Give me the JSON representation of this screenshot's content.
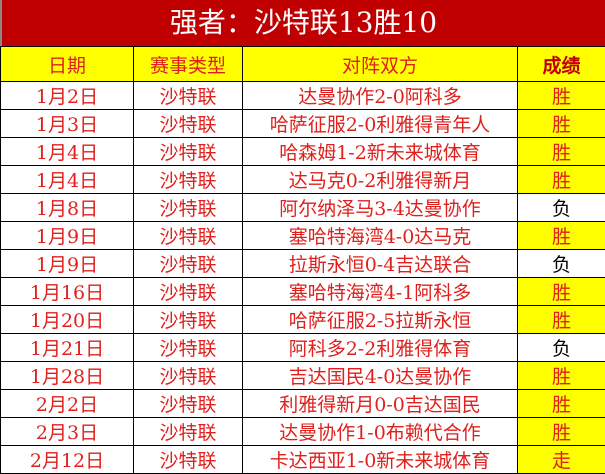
{
  "title": "强者：沙特联13胜10",
  "headers": [
    "日期",
    "赛事类型",
    "对阵双方",
    "成绩"
  ],
  "colors": {
    "title_bg": "#C00000",
    "highlight": "#FFFF00",
    "text": "#e0201c"
  },
  "rows": [
    {
      "date": "1月2日",
      "type": "沙特联",
      "match": "达曼协作2-0阿科多",
      "result": "胜",
      "highlight": true
    },
    {
      "date": "1月3日",
      "type": "沙特联",
      "match": "哈萨征服2-0利雅得青年人",
      "result": "胜",
      "highlight": true
    },
    {
      "date": "1月4日",
      "type": "沙特联",
      "match": "哈森姆1-2新未来城体育",
      "result": "胜",
      "highlight": true
    },
    {
      "date": "1月4日",
      "type": "沙特联",
      "match": "达马克0-2利雅得新月",
      "result": "胜",
      "highlight": true
    },
    {
      "date": "1月8日",
      "type": "沙特联",
      "match": "阿尔纳泽马3-4达曼协作",
      "result": "负",
      "highlight": false
    },
    {
      "date": "1月9日",
      "type": "沙特联",
      "match": "塞哈特海湾4-0达马克",
      "result": "胜",
      "highlight": true
    },
    {
      "date": "1月9日",
      "type": "沙特联",
      "match": "拉斯永恒0-4吉达联合",
      "result": "负",
      "highlight": false
    },
    {
      "date": "1月16日",
      "type": "沙特联",
      "match": "塞哈特海湾4-1阿科多",
      "result": "胜",
      "highlight": true
    },
    {
      "date": "1月20日",
      "type": "沙特联",
      "match": "哈萨征服2-5拉斯永恒",
      "result": "胜",
      "highlight": true
    },
    {
      "date": "1月21日",
      "type": "沙特联",
      "match": "阿科多2-2利雅得体育",
      "result": "负",
      "highlight": false
    },
    {
      "date": "1月28日",
      "type": "沙特联",
      "match": "吉达国民4-0达曼协作",
      "result": "胜",
      "highlight": true
    },
    {
      "date": "2月2日",
      "type": "沙特联",
      "match": "利雅得新月0-0吉达国民",
      "result": "胜",
      "highlight": true
    },
    {
      "date": "2月3日",
      "type": "沙特联",
      "match": "达曼协作1-0布赖代合作",
      "result": "胜",
      "highlight": true
    },
    {
      "date": "2月12日",
      "type": "沙特联",
      "match": "卡达西亚1-0新未来城体育",
      "result": "走",
      "highlight": true
    }
  ]
}
